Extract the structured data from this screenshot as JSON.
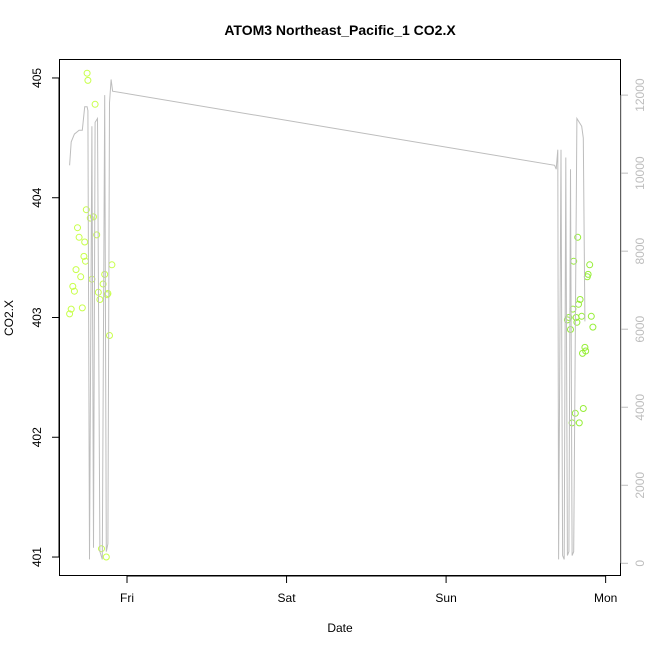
{
  "chart_data": {
    "type": "scatter",
    "title": "ATOM3 Northeast_Pacific_1 CO2.X",
    "xlabel": "Date",
    "ylabel": "CO2.X",
    "x_ticks": [
      {
        "label": "Fri",
        "day": 1
      },
      {
        "label": "Sat",
        "day": 2
      },
      {
        "label": "Sun",
        "day": 3
      },
      {
        "label": "Mon",
        "day": 4
      }
    ],
    "xlim_days": [
      0.58,
      4.09
    ],
    "ylim_left": [
      400.85,
      405.15
    ],
    "left_ticks": [
      401,
      402,
      403,
      404,
      405
    ],
    "ylim_right": [
      -300,
      12900
    ],
    "right_ticks": [
      0,
      2000,
      4000,
      6000,
      8000,
      10000,
      12000
    ],
    "colors": {
      "points_early": "#c8ff4a",
      "points_late": "#96ee37",
      "line": "#bdbdbd"
    },
    "series": [
      {
        "axis": "left",
        "style": "points",
        "points": [
          [
            0.64,
            403.03
          ],
          [
            0.65,
            403.07
          ],
          [
            0.66,
            403.26
          ],
          [
            0.67,
            403.22
          ],
          [
            0.68,
            403.4
          ],
          [
            0.69,
            403.75
          ],
          [
            0.7,
            403.67
          ],
          [
            0.71,
            403.34
          ],
          [
            0.72,
            403.08
          ],
          [
            0.73,
            403.51
          ],
          [
            0.735,
            403.63
          ],
          [
            0.74,
            403.47
          ],
          [
            0.745,
            403.9
          ],
          [
            0.75,
            405.04
          ],
          [
            0.755,
            404.98
          ],
          [
            0.77,
            403.83
          ],
          [
            0.78,
            403.32
          ],
          [
            0.79,
            403.84
          ],
          [
            0.8,
            404.78
          ],
          [
            0.81,
            403.69
          ],
          [
            0.82,
            403.21
          ],
          [
            0.83,
            403.15
          ],
          [
            0.84,
            401.07
          ],
          [
            0.85,
            403.28
          ],
          [
            0.86,
            403.36
          ],
          [
            0.87,
            401.0
          ],
          [
            0.875,
            403.19
          ],
          [
            0.88,
            403.2
          ],
          [
            0.89,
            402.85
          ],
          [
            0.905,
            403.44
          ],
          [
            3.76,
            402.98
          ],
          [
            3.77,
            403.0
          ],
          [
            3.78,
            402.9
          ],
          [
            3.79,
            402.12
          ],
          [
            3.795,
            403.07
          ],
          [
            3.8,
            403.47
          ],
          [
            3.81,
            402.2
          ],
          [
            3.815,
            403.0
          ],
          [
            3.82,
            402.96
          ],
          [
            3.825,
            403.67
          ],
          [
            3.83,
            403.11
          ],
          [
            3.835,
            402.12
          ],
          [
            3.84,
            403.15
          ],
          [
            3.85,
            403.01
          ],
          [
            3.855,
            402.7
          ],
          [
            3.86,
            402.24
          ],
          [
            3.87,
            402.75
          ],
          [
            3.875,
            402.72
          ],
          [
            3.885,
            403.34
          ],
          [
            3.89,
            403.36
          ],
          [
            3.9,
            403.44
          ],
          [
            3.91,
            403.01
          ],
          [
            3.92,
            402.92
          ]
        ]
      },
      {
        "axis": "right",
        "style": "line",
        "points": [
          [
            0.64,
            10200
          ],
          [
            0.65,
            10800
          ],
          [
            0.67,
            11000
          ],
          [
            0.7,
            11100
          ],
          [
            0.72,
            11100
          ],
          [
            0.735,
            11700
          ],
          [
            0.75,
            11700
          ],
          [
            0.755,
            11600
          ],
          [
            0.765,
            100
          ],
          [
            0.78,
            11200
          ],
          [
            0.79,
            400
          ],
          [
            0.8,
            11300
          ],
          [
            0.815,
            11400
          ],
          [
            0.83,
            300
          ],
          [
            0.845,
            100
          ],
          [
            0.86,
            12000
          ],
          [
            0.87,
            300
          ],
          [
            0.88,
            500
          ],
          [
            0.89,
            11800
          ],
          [
            0.9,
            12400
          ],
          [
            0.91,
            12100
          ],
          [
            3.68,
            10200
          ],
          [
            3.69,
            10100
          ],
          [
            3.7,
            10600
          ],
          [
            3.705,
            100
          ],
          [
            3.72,
            10600
          ],
          [
            3.73,
            200
          ],
          [
            3.74,
            100
          ],
          [
            3.75,
            10400
          ],
          [
            3.76,
            200
          ],
          [
            3.77,
            300
          ],
          [
            3.78,
            10100
          ],
          [
            3.79,
            200
          ],
          [
            3.8,
            300
          ],
          [
            3.82,
            11400
          ],
          [
            3.85,
            11200
          ],
          [
            3.86,
            10900
          ],
          [
            3.87,
            6200
          ]
        ]
      }
    ]
  }
}
